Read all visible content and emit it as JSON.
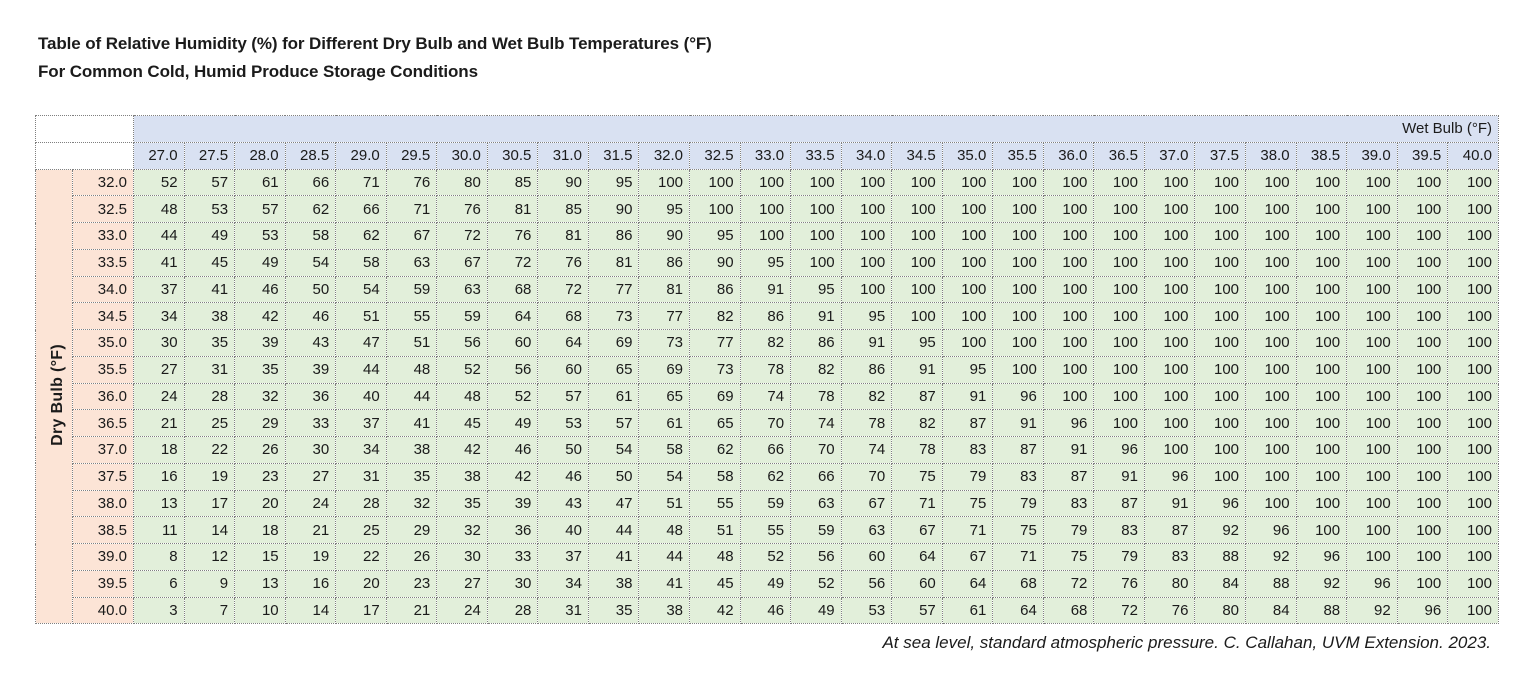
{
  "page": {
    "title": "Table of Relative Humidity (%) for Different Dry Bulb and Wet Bulb Temperatures (°F)",
    "subtitle": "For Common Cold, Humid Produce Storage Conditions",
    "footnote": "At sea level, standard atmospheric pressure. C. Callahan, UVM Extension. 2023."
  },
  "colors": {
    "column_header_fill": "#d9e1f2",
    "row_header_fill": "#fce4d6",
    "data_cell_fill": "#e2efda",
    "grid_border": "#7f7f7f",
    "text": "#1b1b1b"
  },
  "chart_data": {
    "type": "table",
    "title": "Table of Relative Humidity (%) for Different Dry Bulb and Wet Bulb Temperatures (°F)",
    "subtitle": "For Common Cold, Humid Produce Storage Conditions",
    "col_header_label": "Wet Bulb (°F)",
    "row_header_label": "Dry Bulb (°F)",
    "units": "% relative humidity",
    "columns": [
      "27.0",
      "27.5",
      "28.0",
      "28.5",
      "29.0",
      "29.5",
      "30.0",
      "30.5",
      "31.0",
      "31.5",
      "32.0",
      "32.5",
      "33.0",
      "33.5",
      "34.0",
      "34.5",
      "35.0",
      "35.5",
      "36.0",
      "36.5",
      "37.0",
      "37.5",
      "38.0",
      "38.5",
      "39.0",
      "39.5",
      "40.0"
    ],
    "rows": [
      {
        "label": "32.0",
        "values": [
          52,
          57,
          61,
          66,
          71,
          76,
          80,
          85,
          90,
          95,
          100,
          100,
          100,
          100,
          100,
          100,
          100,
          100,
          100,
          100,
          100,
          100,
          100,
          100,
          100,
          100,
          100
        ]
      },
      {
        "label": "32.5",
        "values": [
          48,
          53,
          57,
          62,
          66,
          71,
          76,
          81,
          85,
          90,
          95,
          100,
          100,
          100,
          100,
          100,
          100,
          100,
          100,
          100,
          100,
          100,
          100,
          100,
          100,
          100,
          100
        ]
      },
      {
        "label": "33.0",
        "values": [
          44,
          49,
          53,
          58,
          62,
          67,
          72,
          76,
          81,
          86,
          90,
          95,
          100,
          100,
          100,
          100,
          100,
          100,
          100,
          100,
          100,
          100,
          100,
          100,
          100,
          100,
          100
        ]
      },
      {
        "label": "33.5",
        "values": [
          41,
          45,
          49,
          54,
          58,
          63,
          67,
          72,
          76,
          81,
          86,
          90,
          95,
          100,
          100,
          100,
          100,
          100,
          100,
          100,
          100,
          100,
          100,
          100,
          100,
          100,
          100
        ]
      },
      {
        "label": "34.0",
        "values": [
          37,
          41,
          46,
          50,
          54,
          59,
          63,
          68,
          72,
          77,
          81,
          86,
          91,
          95,
          100,
          100,
          100,
          100,
          100,
          100,
          100,
          100,
          100,
          100,
          100,
          100,
          100
        ]
      },
      {
        "label": "34.5",
        "values": [
          34,
          38,
          42,
          46,
          51,
          55,
          59,
          64,
          68,
          73,
          77,
          82,
          86,
          91,
          95,
          100,
          100,
          100,
          100,
          100,
          100,
          100,
          100,
          100,
          100,
          100,
          100
        ]
      },
      {
        "label": "35.0",
        "values": [
          30,
          35,
          39,
          43,
          47,
          51,
          56,
          60,
          64,
          69,
          73,
          77,
          82,
          86,
          91,
          95,
          100,
          100,
          100,
          100,
          100,
          100,
          100,
          100,
          100,
          100,
          100
        ]
      },
      {
        "label": "35.5",
        "values": [
          27,
          31,
          35,
          39,
          44,
          48,
          52,
          56,
          60,
          65,
          69,
          73,
          78,
          82,
          86,
          91,
          95,
          100,
          100,
          100,
          100,
          100,
          100,
          100,
          100,
          100,
          100
        ]
      },
      {
        "label": "36.0",
        "values": [
          24,
          28,
          32,
          36,
          40,
          44,
          48,
          52,
          57,
          61,
          65,
          69,
          74,
          78,
          82,
          87,
          91,
          96,
          100,
          100,
          100,
          100,
          100,
          100,
          100,
          100,
          100
        ]
      },
      {
        "label": "36.5",
        "values": [
          21,
          25,
          29,
          33,
          37,
          41,
          45,
          49,
          53,
          57,
          61,
          65,
          70,
          74,
          78,
          82,
          87,
          91,
          96,
          100,
          100,
          100,
          100,
          100,
          100,
          100,
          100
        ]
      },
      {
        "label": "37.0",
        "values": [
          18,
          22,
          26,
          30,
          34,
          38,
          42,
          46,
          50,
          54,
          58,
          62,
          66,
          70,
          74,
          78,
          83,
          87,
          91,
          96,
          100,
          100,
          100,
          100,
          100,
          100,
          100
        ]
      },
      {
        "label": "37.5",
        "values": [
          16,
          19,
          23,
          27,
          31,
          35,
          38,
          42,
          46,
          50,
          54,
          58,
          62,
          66,
          70,
          75,
          79,
          83,
          87,
          91,
          96,
          100,
          100,
          100,
          100,
          100,
          100
        ]
      },
      {
        "label": "38.0",
        "values": [
          13,
          17,
          20,
          24,
          28,
          32,
          35,
          39,
          43,
          47,
          51,
          55,
          59,
          63,
          67,
          71,
          75,
          79,
          83,
          87,
          91,
          96,
          100,
          100,
          100,
          100,
          100
        ]
      },
      {
        "label": "38.5",
        "values": [
          11,
          14,
          18,
          21,
          25,
          29,
          32,
          36,
          40,
          44,
          48,
          51,
          55,
          59,
          63,
          67,
          71,
          75,
          79,
          83,
          87,
          92,
          96,
          100,
          100,
          100,
          100
        ]
      },
      {
        "label": "39.0",
        "values": [
          8,
          12,
          15,
          19,
          22,
          26,
          30,
          33,
          37,
          41,
          44,
          48,
          52,
          56,
          60,
          64,
          67,
          71,
          75,
          79,
          83,
          88,
          92,
          96,
          100,
          100,
          100
        ]
      },
      {
        "label": "39.5",
        "values": [
          6,
          9,
          13,
          16,
          20,
          23,
          27,
          30,
          34,
          38,
          41,
          45,
          49,
          52,
          56,
          60,
          64,
          68,
          72,
          76,
          80,
          84,
          88,
          92,
          96,
          100,
          100
        ]
      },
      {
        "label": "40.0",
        "values": [
          3,
          7,
          10,
          14,
          17,
          21,
          24,
          28,
          31,
          35,
          38,
          42,
          46,
          49,
          53,
          57,
          61,
          64,
          68,
          72,
          76,
          80,
          84,
          88,
          92,
          96,
          100
        ]
      }
    ]
  }
}
